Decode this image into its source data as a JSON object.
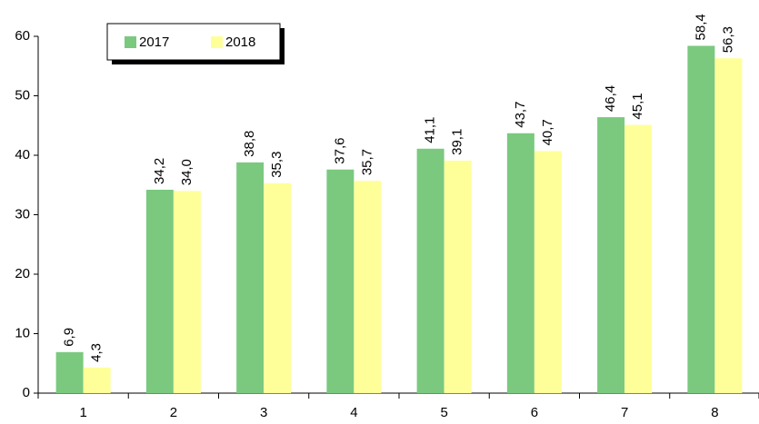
{
  "chart_data": {
    "type": "bar",
    "categories": [
      "1",
      "2",
      "3",
      "4",
      "5",
      "6",
      "7",
      "8"
    ],
    "series": [
      {
        "name": "2017",
        "color": "#7ac97f",
        "values": [
          6.9,
          34.2,
          38.8,
          37.6,
          41.1,
          43.7,
          46.4,
          58.4
        ],
        "value_labels": [
          "6,9",
          "34,2",
          "38,8",
          "37,6",
          "41,1",
          "43,7",
          "46,4",
          "58,4"
        ]
      },
      {
        "name": "2018",
        "color": "#ffff99",
        "values": [
          4.3,
          34.0,
          35.3,
          35.7,
          39.1,
          40.7,
          45.1,
          56.3
        ],
        "value_labels": [
          "4,3",
          "34,0",
          "35,3",
          "35,7",
          "39,1",
          "40,7",
          "45,1",
          "56,3"
        ]
      }
    ],
    "ylim": [
      0,
      60
    ],
    "yticks": [
      0,
      10,
      20,
      30,
      40,
      50,
      60
    ],
    "grid": false,
    "legend": "top-left"
  }
}
